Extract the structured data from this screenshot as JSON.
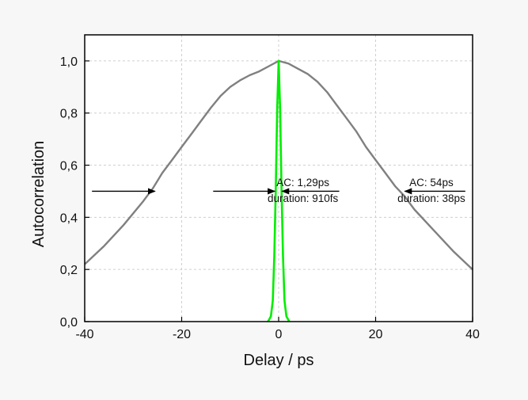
{
  "chart_data": {
    "type": "line",
    "xlabel": "Delay / ps",
    "ylabel": "Autocorrelation",
    "xlim": [
      -40,
      40
    ],
    "ylim": [
      0,
      1.1
    ],
    "grid": true,
    "x_ticks": [
      {
        "value": -40,
        "label": "-40"
      },
      {
        "value": -20,
        "label": "-20"
      },
      {
        "value": 0,
        "label": "0"
      },
      {
        "value": 20,
        "label": "20"
      },
      {
        "value": 40,
        "label": "40"
      }
    ],
    "y_ticks": [
      {
        "value": 0.0,
        "label": "0,0"
      },
      {
        "value": 0.2,
        "label": "0,2"
      },
      {
        "value": 0.4,
        "label": "0,4"
      },
      {
        "value": 0.6,
        "label": "0,6"
      },
      {
        "value": 0.8,
        "label": "0,8"
      },
      {
        "value": 1.0,
        "label": "1,0"
      }
    ],
    "series": [
      {
        "color": "#808080",
        "x": [
          -40,
          -36,
          -32,
          -28,
          -26,
          -24,
          -22,
          -20,
          -18,
          -16,
          -14,
          -12,
          -10,
          -8,
          -6,
          -4,
          -2,
          0,
          2,
          4,
          6,
          8,
          10,
          12,
          14,
          16,
          18,
          20,
          22,
          24,
          26,
          28,
          32,
          36,
          40
        ],
        "y": [
          0.22,
          0.29,
          0.37,
          0.46,
          0.51,
          0.57,
          0.62,
          0.67,
          0.72,
          0.77,
          0.82,
          0.865,
          0.9,
          0.925,
          0.945,
          0.96,
          0.98,
          1.0,
          0.99,
          0.97,
          0.95,
          0.92,
          0.88,
          0.83,
          0.78,
          0.73,
          0.67,
          0.62,
          0.57,
          0.52,
          0.48,
          0.43,
          0.35,
          0.27,
          0.2
        ]
      },
      {
        "color": "#00ee00",
        "x": [
          -2.2,
          -1.6,
          -1.2,
          -0.9,
          -0.6,
          -0.3,
          0,
          0.3,
          0.6,
          0.9,
          1.2,
          1.6,
          2.2
        ],
        "y": [
          0.0,
          0.02,
          0.08,
          0.25,
          0.5,
          0.82,
          1.0,
          0.82,
          0.5,
          0.25,
          0.08,
          0.02,
          0.0
        ]
      }
    ],
    "annotations": [
      {
        "lines": [
          "AC: 1,29ps",
          "duration: 910fs"
        ],
        "x": 5,
        "y": 0.52
      },
      {
        "lines": [
          "AC: 54ps",
          "duration: 38ps"
        ],
        "x": 31.5,
        "y": 0.52
      }
    ],
    "arrows": [
      {
        "from": [
          -38.5,
          0.5
        ],
        "to": [
          -25.5,
          0.5
        ]
      },
      {
        "from": [
          -13.5,
          0.5
        ],
        "to": [
          -0.8,
          0.5
        ]
      },
      {
        "from": [
          12.5,
          0.5
        ],
        "to": [
          0.7,
          0.5
        ]
      },
      {
        "from": [
          38.5,
          0.5
        ],
        "to": [
          26.0,
          0.5
        ]
      }
    ]
  }
}
